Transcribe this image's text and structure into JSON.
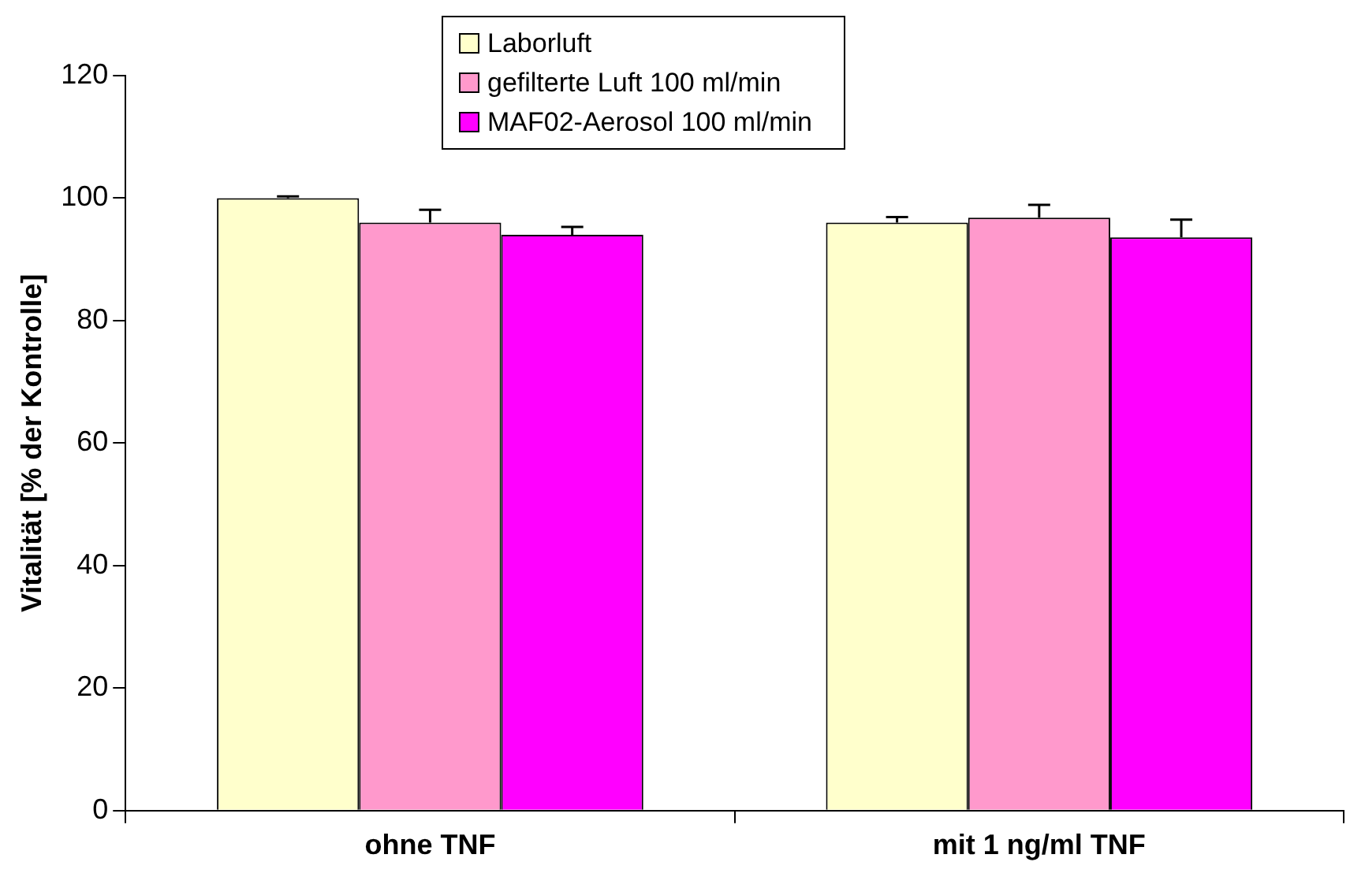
{
  "chart_data": {
    "type": "bar",
    "ylabel": "Vitalität [% der Kontrolle]",
    "categories": [
      "ohne TNF",
      "mit 1 ng/ml TNF"
    ],
    "series": [
      {
        "name": "Laborluft",
        "color": "#ffffcc",
        "values": [
          100,
          96
        ],
        "errors": [
          [
            100,
            100.3
          ],
          [
            96,
            96.9
          ]
        ]
      },
      {
        "name": "gefilterte Luft 100 ml/min",
        "color": "#ff99cc",
        "values": [
          96,
          96.8
        ],
        "errors": [
          [
            96,
            98.1
          ],
          [
            96.8,
            98.9
          ]
        ]
      },
      {
        "name": "MAF02-Aerosol 100 ml/min",
        "color": "#ff00ff",
        "values": [
          94,
          93.6
        ],
        "errors": [
          [
            94,
            95.3
          ],
          [
            93.6,
            96.5
          ]
        ]
      }
    ],
    "ylim": [
      0,
      120
    ],
    "yticks": [
      0,
      20,
      40,
      60,
      80,
      100,
      120
    ],
    "grid": false,
    "legend": "top"
  }
}
